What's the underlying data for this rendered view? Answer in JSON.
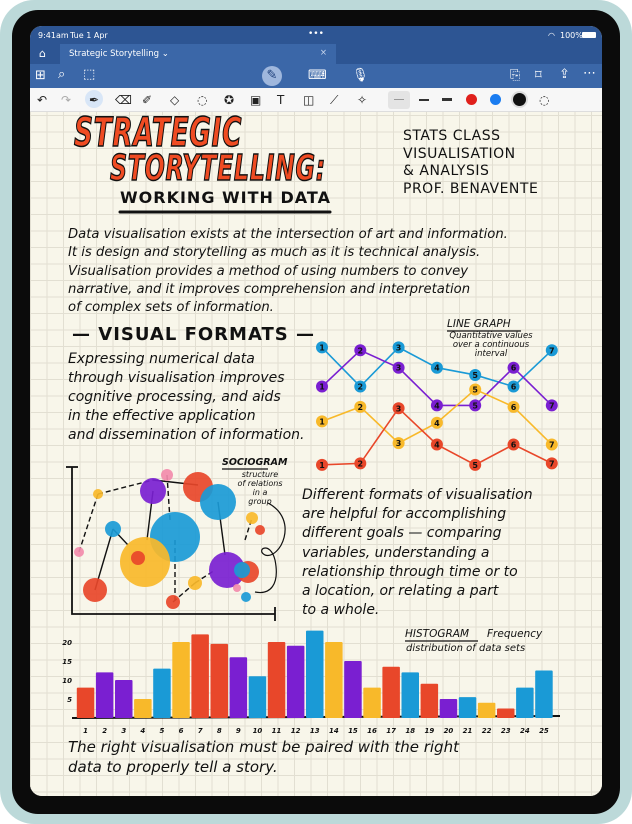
{
  "status": {
    "time": "9:41am",
    "date": "Tue 1 Apr",
    "battery": "100%",
    "dots": "•••"
  },
  "tab": {
    "title": "Strategic Storytelling",
    "chevron": "⌄",
    "close": "×"
  },
  "toolbar": {
    "left_icons": [
      "home-icon",
      "grid-icon",
      "search-icon",
      "lasso-shape-icon"
    ],
    "center_icons": [
      "pen-mode-icon",
      "keyboard-icon",
      "microphone-icon"
    ],
    "right_icons": [
      "add-page-icon",
      "bookmark-icon",
      "share-icon",
      "more-icon"
    ]
  },
  "tools": {
    "icons": [
      "undo-icon",
      "redo-icon",
      "pen-icon",
      "eraser-icon",
      "highlighter-icon",
      "shapes-icon",
      "lasso-icon",
      "sticker-icon",
      "image-icon",
      "text-box-icon",
      "camera-scan-icon",
      "ruler-icon",
      "laser-pointer-icon"
    ],
    "colors": {
      "red": "#e0201c",
      "blue": "#1a7cf0",
      "black": "#111111"
    }
  },
  "note": {
    "title1": "STRATEGIC",
    "title2": "STORYTELLING:",
    "subtitle": "WORKING WITH DATA",
    "course": [
      "STATS CLASS",
      "VISUALISATION",
      "& ANALYSIS",
      "PROF. BENAVENTE"
    ],
    "intro": [
      "Data visualisation exists at the intersection of art and information.",
      "It is design and storytelling as much as it is technical analysis.",
      "Visualisation provides a method of using numbers to convey",
      "narrative, and it improves comprehension and interpretation",
      "of complex sets of information."
    ],
    "section": "— VISUAL FORMATS —",
    "para2": [
      "Expressing numerical data",
      "through visualisation improves",
      "cognitive processing, and aids",
      "in the effective application",
      "and dissemination of information."
    ],
    "line_graph_title": "LINE GRAPH",
    "line_graph_desc": [
      "Quantitative values",
      "over a continuous",
      "interval"
    ],
    "sociogram_title": "SOCIOGRAM",
    "sociogram_desc": [
      "structure",
      "of relations",
      "in a",
      "group"
    ],
    "para3": [
      "Different formats of visualisation",
      "are helpful for accomplishing",
      "different goals — comparing",
      "variables, understanding a",
      "relationship through time or to",
      "a location, or relating a part",
      "to a whole."
    ],
    "histogram_title": "HISTOGRAM",
    "histogram_label": "Frequency",
    "histogram_desc": "distribution of data sets",
    "closing": [
      "The right visualisation must be paired with the right",
      "data to properly tell a story."
    ]
  },
  "chart_data": [
    {
      "type": "line",
      "title": "LINE GRAPH",
      "x": [
        1,
        2,
        3,
        4,
        5,
        6,
        7
      ],
      "series": [
        {
          "color": "#1a9ad6",
          "values": [
            8.8,
            6.1,
            8.8,
            7.4,
            6.9,
            6.1,
            8.6
          ]
        },
        {
          "color": "#7a1fd1",
          "values": [
            6.1,
            8.6,
            7.4,
            4.8,
            4.8,
            7.4,
            4.8
          ]
        },
        {
          "color": "#f8b92a",
          "values": [
            3.7,
            4.7,
            2.2,
            3.6,
            5.9,
            4.7,
            2.1
          ]
        },
        {
          "color": "#e8472a",
          "values": [
            0.7,
            0.8,
            4.6,
            2.1,
            0.7,
            2.1,
            0.8
          ]
        }
      ]
    },
    {
      "type": "bar",
      "title": "HISTOGRAM",
      "categories": [
        "1",
        "2",
        "3",
        "4",
        "5",
        "6",
        "7",
        "8",
        "9",
        "10",
        "11",
        "12",
        "13",
        "14",
        "15",
        "16",
        "17",
        "18",
        "19",
        "20",
        "21",
        "22",
        "23",
        "24",
        "25"
      ],
      "values": [
        8,
        12,
        10,
        5,
        13,
        20,
        22,
        19.5,
        16,
        11,
        20,
        19,
        23,
        20,
        15,
        8,
        13.5,
        12,
        9,
        5,
        5.5,
        4,
        2.5,
        8,
        12.5
      ],
      "colors": [
        "red",
        "purple",
        "purple",
        "yellow",
        "blue",
        "yellow",
        "red",
        "red",
        "purple",
        "blue",
        "red",
        "purple",
        "blue",
        "yellow",
        "purple",
        "yellow",
        "red",
        "blue",
        "red",
        "purple",
        "blue",
        "yellow",
        "red",
        "blue",
        "blue"
      ],
      "yticks": [
        "5",
        "10",
        "15",
        "20"
      ],
      "ylim": [
        0,
        24
      ]
    },
    {
      "type": "scatter",
      "title": "SOCIOGRAM"
    }
  ],
  "palette": {
    "red": "#e8472a",
    "purple": "#7a1fd1",
    "yellow": "#f8b92a",
    "blue": "#1a9ad6",
    "pink": "#f28bab"
  }
}
